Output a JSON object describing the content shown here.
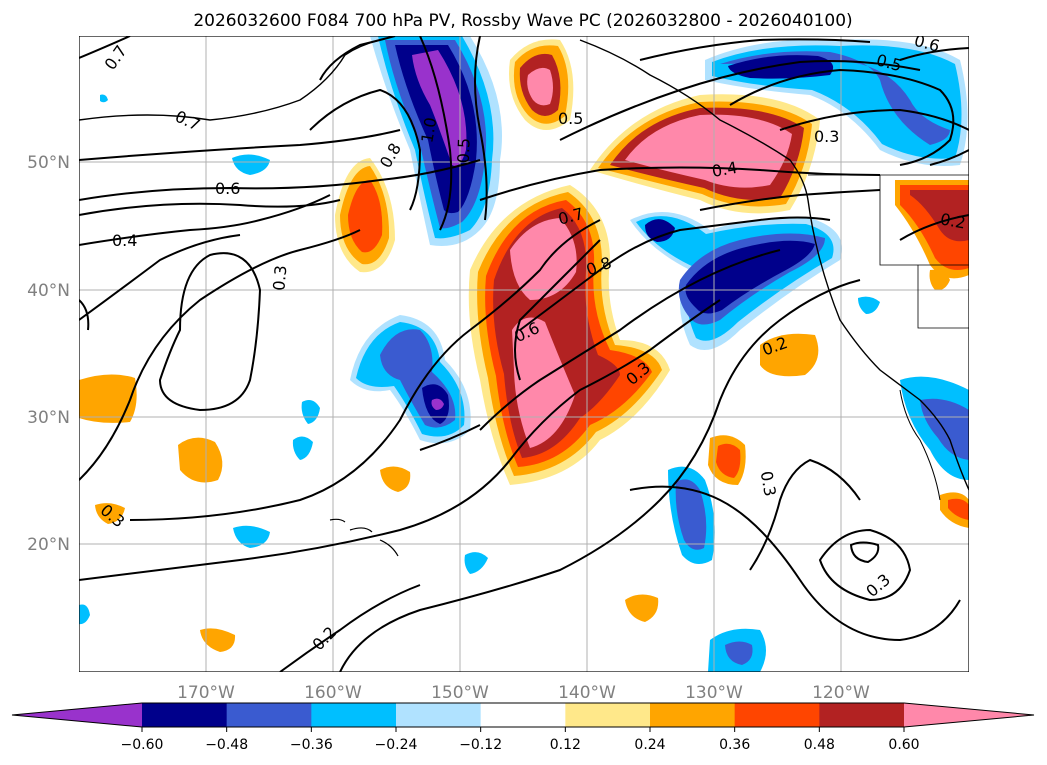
{
  "title": "2026032600 F084 700 hPa PV, Rossby Wave PC (2026032800 - 2026040100)",
  "map": {
    "lat_labels": [
      "50°N",
      "40°N",
      "30°N",
      "20°N"
    ],
    "lon_labels": [
      "170°W",
      "160°W",
      "150°W",
      "140°W",
      "130°W",
      "120°W"
    ]
  },
  "contour_labels": [
    "0.7",
    "0.7",
    "0.6",
    "0.4",
    "0.3",
    "0.8",
    "1.0",
    "0.5",
    "0.5",
    "0.7",
    "0.8",
    "0.6",
    "0.3",
    "0.4",
    "0.3",
    "0.2",
    "0.6",
    "0.5",
    "0.2",
    "0.3",
    "0.3",
    "0.2",
    "0.3"
  ],
  "colorbar": {
    "ticks": [
      "−0.60",
      "−0.48",
      "−0.36",
      "−0.24",
      "−0.12",
      "0.12",
      "0.24",
      "0.36",
      "0.48",
      "0.60"
    ],
    "colors": [
      "#9932cc",
      "#00008b",
      "#3a5bd0",
      "#00bfff",
      "#b0e2ff",
      "#ffffff",
      "#ffe88a",
      "#ffa500",
      "#ff4500",
      "#b22222",
      "#ff88aa"
    ]
  }
}
